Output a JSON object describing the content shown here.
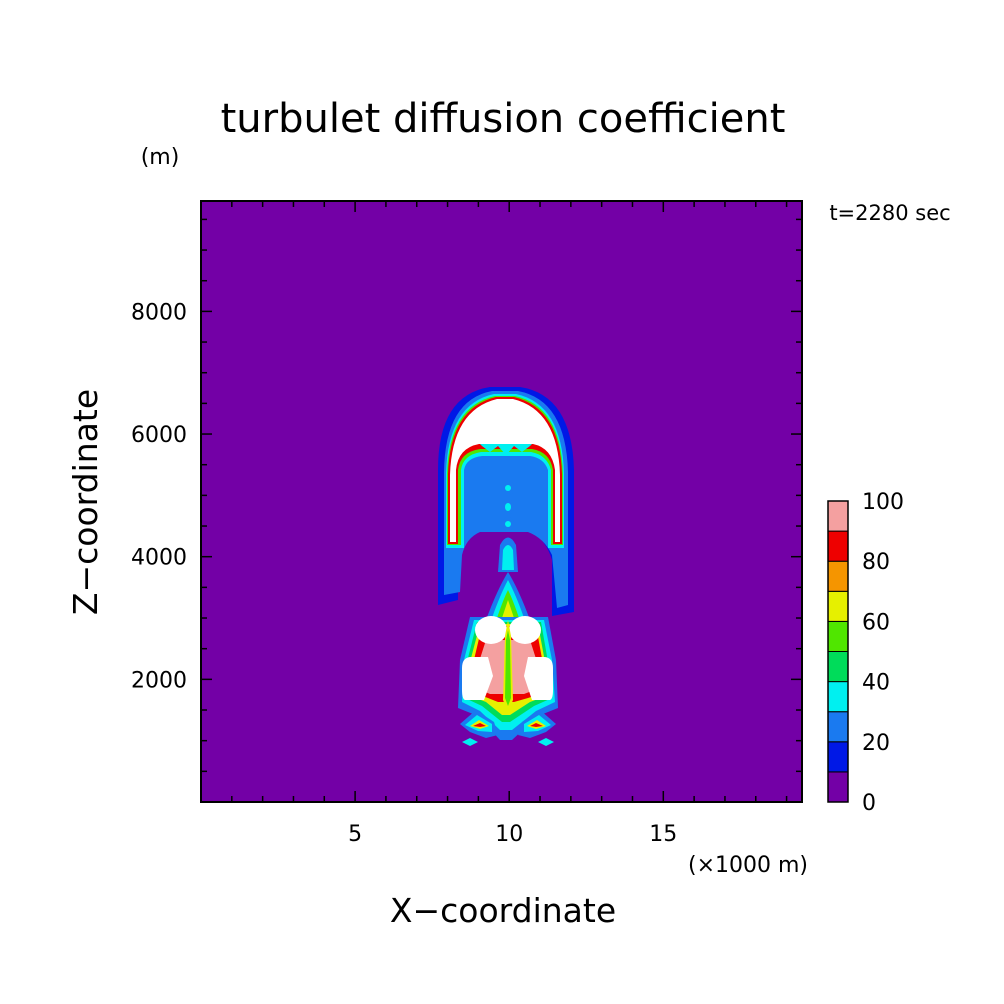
{
  "chart_data": {
    "type": "heatmap",
    "title": "turbulet diffusion coefficient",
    "xlabel": "X−coordinate",
    "ylabel": "Z−coordinate",
    "x_unit": "(×1000 m)",
    "y_unit": "(m)",
    "annotation": "t=2280 sec",
    "xlim": [
      0,
      19.5
    ],
    "ylim": [
      0,
      9800
    ],
    "x_ticks": [
      5,
      10,
      15
    ],
    "y_ticks": [
      2000,
      4000,
      6000,
      8000
    ],
    "x_tick_labels": [
      "5",
      "10",
      "15"
    ],
    "y_tick_labels": [
      "2000",
      "4000",
      "6000",
      "8000"
    ],
    "grid": false,
    "colorbar": {
      "levels": [
        0,
        10,
        20,
        30,
        40,
        50,
        60,
        70,
        80,
        90,
        100
      ],
      "tick_values": [
        0,
        20,
        40,
        60,
        80,
        100
      ],
      "tick_labels": [
        "0",
        "20",
        "40",
        "60",
        "80",
        "100"
      ],
      "colors": [
        "#7300a6",
        "#0018e6",
        "#1a7af0",
        "#00f0f0",
        "#00dc5a",
        "#50e600",
        "#e6f000",
        "#f59500",
        "#ee0000",
        "#f4a0a0"
      ],
      "over_color": "#ffffff"
    },
    "background_value": 0,
    "regions": [
      {
        "name": "upper-cap",
        "value": 100,
        "x_range": [
          7.9,
          12.3
        ],
        "z_range": [
          4300,
          6800
        ]
      },
      {
        "name": "central-column",
        "value": 60,
        "x_range": [
          9.6,
          10.8
        ],
        "z_range": [
          2600,
          5300
        ]
      },
      {
        "name": "lower-core",
        "value": 100,
        "x_range": [
          8.7,
          11.6
        ],
        "z_range": [
          1600,
          3000
        ]
      },
      {
        "name": "bottom-tails",
        "value": 40,
        "x_range": [
          8.5,
          11.7
        ],
        "z_range": [
          950,
          1500
        ]
      }
    ]
  }
}
